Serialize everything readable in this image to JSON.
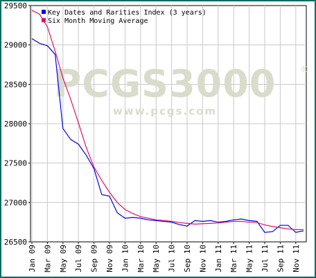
{
  "colors": {
    "frame": "#0c6b60",
    "grid": "#c8c8c8",
    "index_series": "#0000ee",
    "average_series": "#e0106a",
    "watermark": "#d9dccb"
  },
  "watermark": {
    "logo": "PCGS3000",
    "registered": "®",
    "url": "www.pcgs.com"
  },
  "chart_data": {
    "type": "line",
    "grid": true,
    "legend_position": "top-left",
    "ylim": [
      26500,
      29500
    ],
    "yticks": [
      26500,
      27000,
      27500,
      28000,
      28500,
      29000,
      29500
    ],
    "ytick_labels": [
      "26500",
      "27000",
      "27500",
      "28000",
      "28500",
      "29000",
      "29500"
    ],
    "x_month_count": 36,
    "xtick_labels": [
      "Jan 09",
      "Mar 09",
      "May 09",
      "Jul 09",
      "Sep 09",
      "Nov 09",
      "Jan 10",
      "Mar 10",
      "May 10",
      "Jul 10",
      "Sep 10",
      "Nov 10",
      "Jan 11",
      "Mar 11",
      "May 11",
      "Jul 11",
      "Sep 11",
      "Nov 11"
    ],
    "series": [
      {
        "name": "Key Dates and Rarities Index (3 years)",
        "color": "#0000ee",
        "values": [
          29080,
          29020,
          28990,
          28880,
          27940,
          27800,
          27740,
          27600,
          27430,
          27100,
          27080,
          26870,
          26800,
          26810,
          26800,
          26780,
          26770,
          26760,
          26750,
          26720,
          26700,
          26770,
          26760,
          26770,
          26750,
          26760,
          26780,
          26790,
          26770,
          26760,
          26620,
          26630,
          26710,
          26710,
          26620,
          26640
        ]
      },
      {
        "name": "Six Month Moving Average",
        "color": "#e0106a",
        "values": [
          29440,
          29390,
          29230,
          28920,
          28580,
          28310,
          28010,
          27700,
          27450,
          27280,
          27130,
          27000,
          26910,
          26860,
          26820,
          26800,
          26780,
          26770,
          26760,
          26745,
          26735,
          26725,
          26730,
          26735,
          26740,
          26750,
          26760,
          26760,
          26750,
          26745,
          26715,
          26695,
          26680,
          26665,
          26655,
          26655
        ]
      }
    ]
  }
}
